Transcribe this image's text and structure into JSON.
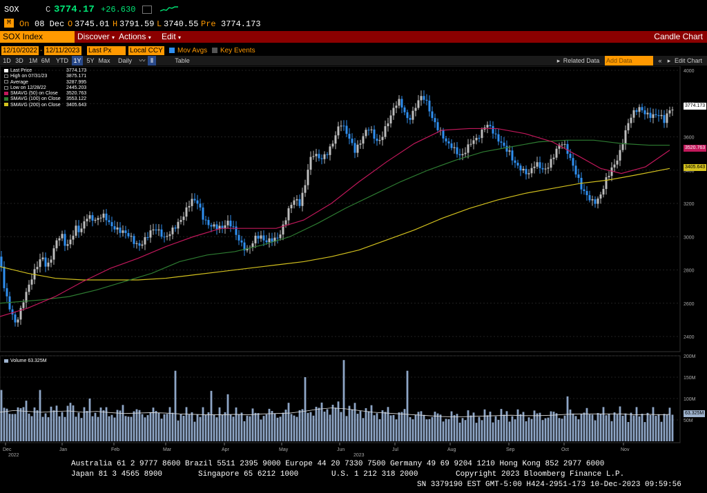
{
  "quote": {
    "ticker": "SOX",
    "c_prefix": "C",
    "last": "3774.17",
    "change": "+26.630",
    "icon_m": "M",
    "on_label": "On",
    "date": "08 Dec",
    "o_prefix": "O",
    "open": "3745.01",
    "h_prefix": "H",
    "high": "3791.59",
    "l_prefix": "L",
    "low": "3740.55",
    "pre_label": "Pre",
    "pre": "3774.173"
  },
  "menu": {
    "security": "SOX Index",
    "discover": "Discover",
    "actions": "Actions",
    "edit": "Edit",
    "view": "Candle Chart"
  },
  "toolbar": {
    "start_date": "12/10/2022",
    "end_date": "12/11/2023",
    "field": "Last Px",
    "currency": "Local CCY",
    "mov_avgs": "Mov Avgs",
    "key_events": "Key Events",
    "periods": [
      "1D",
      "3D",
      "1M",
      "6M",
      "YTD",
      "1Y",
      "5Y",
      "Max"
    ],
    "selected_period": "1Y",
    "frequency": "Daily",
    "table": "Table",
    "related_data": "Related Data",
    "add_data_placeholder": "Add Data",
    "edit_chart": "Edit Chart"
  },
  "legend": [
    {
      "label": "Last Price",
      "value": "3774.173",
      "color": "#ffffff"
    },
    {
      "label": "High on 07/31/23",
      "value": "3875.171",
      "color": "#ffffff"
    },
    {
      "label": "Average",
      "value": "3287.995",
      "color": "#ffffff"
    },
    {
      "label": "Low on 12/28/22",
      "value": "2445.203",
      "color": "#ffffff"
    },
    {
      "label": "SMAVG (50)  on Close",
      "value": "3520.763",
      "color": "#c2185b"
    },
    {
      "label": "SMAVG (100)  on Close",
      "value": "3553.122",
      "color": "#2e7d32"
    },
    {
      "label": "SMAVG (200)  on Close",
      "value": "3405.643",
      "color": "#d4c21e"
    }
  ],
  "volume_legend": {
    "label": "Volume",
    "value": "63.325M"
  },
  "price_labels": {
    "last": "3774.173",
    "sma50": "3520.763",
    "sma200": "3405.643",
    "volume": "63.325M"
  },
  "colors": {
    "up": "#bdbdbd",
    "down": "#2f8ff0",
    "sma50": "#c2185b",
    "sma100": "#2e7d32",
    "sma200": "#d4c21e",
    "menu": "#8b0000",
    "accent": "#ff9900"
  },
  "chart_data": {
    "type": "candlestick",
    "price_ylim": [
      2300,
      4000
    ],
    "price_ticks": [
      "2400",
      "2600",
      "2800",
      "3000",
      "3200",
      "3400",
      "3600",
      "3800",
      "4000"
    ],
    "volume_ylim": [
      0,
      200
    ],
    "volume_ticks": [
      "50M",
      "100M",
      "150M",
      "200M"
    ],
    "x_ticks": [
      "Dec",
      "Jan",
      "Feb",
      "Mar",
      "Apr",
      "May",
      "Jun",
      "Jul",
      "Aug",
      "Sep",
      "Oct",
      "Nov"
    ],
    "x_subticks": [
      "2022",
      "2023"
    ],
    "close_path": [
      [
        0,
        2880
      ],
      [
        5,
        2730
      ],
      [
        12,
        2610
      ],
      [
        17,
        2560
      ],
      [
        21,
        2480
      ],
      [
        28,
        2520
      ],
      [
        34,
        2600
      ],
      [
        40,
        2670
      ],
      [
        47,
        2760
      ],
      [
        54,
        2840
      ],
      [
        61,
        2900
      ],
      [
        68,
        2820
      ],
      [
        75,
        2880
      ],
      [
        82,
        2960
      ],
      [
        89,
        3000
      ],
      [
        96,
        2930
      ],
      [
        103,
        3000
      ],
      [
        110,
        3070
      ],
      [
        117,
        3040
      ],
      [
        124,
        3110
      ],
      [
        131,
        3100
      ],
      [
        138,
        3080
      ],
      [
        145,
        3120
      ],
      [
        152,
        3140
      ],
      [
        159,
        3090
      ],
      [
        166,
        3060
      ],
      [
        173,
        3030
      ],
      [
        180,
        3010
      ],
      [
        188,
        2990
      ],
      [
        196,
        2960
      ],
      [
        203,
        2960
      ],
      [
        210,
        3000
      ],
      [
        217,
        3030
      ],
      [
        224,
        3040
      ],
      [
        231,
        3010
      ],
      [
        238,
        2980
      ],
      [
        245,
        3020
      ],
      [
        252,
        3070
      ],
      [
        259,
        3100
      ],
      [
        266,
        3130
      ],
      [
        273,
        3180
      ],
      [
        280,
        3210
      ],
      [
        287,
        3190
      ],
      [
        294,
        3120
      ],
      [
        301,
        3090
      ],
      [
        308,
        3080
      ],
      [
        315,
        3060
      ],
      [
        322,
        3040
      ],
      [
        329,
        3070
      ],
      [
        336,
        3060
      ],
      [
        343,
        3010
      ],
      [
        350,
        2970
      ],
      [
        357,
        2930
      ],
      [
        364,
        2950
      ],
      [
        371,
        2990
      ],
      [
        378,
        2980
      ],
      [
        385,
        2960
      ],
      [
        392,
        2990
      ],
      [
        399,
        3000
      ],
      [
        406,
        3030
      ],
      [
        413,
        3100
      ],
      [
        420,
        3170
      ],
      [
        427,
        3210
      ],
      [
        434,
        3190
      ],
      [
        441,
        3300
      ],
      [
        446,
        3420
      ],
      [
        452,
        3520
      ],
      [
        459,
        3490
      ],
      [
        466,
        3460
      ],
      [
        473,
        3480
      ],
      [
        480,
        3530
      ],
      [
        486,
        3610
      ],
      [
        493,
        3700
      ],
      [
        500,
        3660
      ],
      [
        507,
        3590
      ],
      [
        514,
        3510
      ],
      [
        521,
        3540
      ],
      [
        528,
        3610
      ],
      [
        535,
        3660
      ],
      [
        542,
        3610
      ],
      [
        549,
        3580
      ],
      [
        556,
        3640
      ],
      [
        563,
        3690
      ],
      [
        570,
        3750
      ],
      [
        577,
        3810
      ],
      [
        584,
        3770
      ],
      [
        591,
        3710
      ],
      [
        598,
        3760
      ],
      [
        605,
        3820
      ],
      [
        612,
        3840
      ],
      [
        619,
        3780
      ],
      [
        626,
        3700
      ],
      [
        633,
        3660
      ],
      [
        640,
        3630
      ],
      [
        647,
        3580
      ],
      [
        654,
        3550
      ],
      [
        661,
        3500
      ],
      [
        668,
        3460
      ],
      [
        675,
        3510
      ],
      [
        682,
        3570
      ],
      [
        689,
        3600
      ],
      [
        696,
        3630
      ],
      [
        703,
        3680
      ],
      [
        710,
        3650
      ],
      [
        717,
        3590
      ],
      [
        724,
        3560
      ],
      [
        731,
        3540
      ],
      [
        738,
        3520
      ],
      [
        745,
        3460
      ],
      [
        752,
        3420
      ],
      [
        759,
        3380
      ],
      [
        766,
        3360
      ],
      [
        773,
        3420
      ],
      [
        780,
        3440
      ],
      [
        787,
        3410
      ],
      [
        794,
        3440
      ],
      [
        801,
        3480
      ],
      [
        808,
        3530
      ],
      [
        815,
        3550
      ],
      [
        822,
        3500
      ],
      [
        829,
        3440
      ],
      [
        836,
        3380
      ],
      [
        843,
        3300
      ],
      [
        850,
        3250
      ],
      [
        857,
        3200
      ],
      [
        864,
        3190
      ],
      [
        871,
        3250
      ],
      [
        878,
        3350
      ],
      [
        885,
        3420
      ],
      [
        892,
        3460
      ],
      [
        899,
        3520
      ],
      [
        906,
        3620
      ],
      [
        913,
        3700
      ],
      [
        920,
        3750
      ],
      [
        927,
        3780
      ],
      [
        934,
        3760
      ],
      [
        941,
        3740
      ],
      [
        948,
        3730
      ],
      [
        955,
        3720
      ],
      [
        962,
        3680
      ],
      [
        969,
        3750
      ],
      [
        974,
        3774
      ]
    ],
    "sma50_path": [
      [
        0,
        2520
      ],
      [
        40,
        2570
      ],
      [
        80,
        2640
      ],
      [
        120,
        2730
      ],
      [
        160,
        2810
      ],
      [
        200,
        2870
      ],
      [
        240,
        2940
      ],
      [
        280,
        3000
      ],
      [
        320,
        3050
      ],
      [
        360,
        3050
      ],
      [
        400,
        3050
      ],
      [
        440,
        3100
      ],
      [
        480,
        3200
      ],
      [
        520,
        3330
      ],
      [
        560,
        3450
      ],
      [
        600,
        3560
      ],
      [
        640,
        3640
      ],
      [
        680,
        3650
      ],
      [
        720,
        3650
      ],
      [
        760,
        3620
      ],
      [
        800,
        3570
      ],
      [
        840,
        3480
      ],
      [
        870,
        3410
      ],
      [
        900,
        3380
      ],
      [
        935,
        3420
      ],
      [
        970,
        3520
      ]
    ],
    "sma100_path": [
      [
        0,
        2600
      ],
      [
        60,
        2620
      ],
      [
        100,
        2640
      ],
      [
        140,
        2680
      ],
      [
        180,
        2730
      ],
      [
        220,
        2780
      ],
      [
        260,
        2850
      ],
      [
        300,
        2890
      ],
      [
        340,
        2910
      ],
      [
        380,
        2950
      ],
      [
        420,
        3000
      ],
      [
        460,
        3080
      ],
      [
        500,
        3170
      ],
      [
        540,
        3250
      ],
      [
        580,
        3330
      ],
      [
        620,
        3400
      ],
      [
        660,
        3460
      ],
      [
        700,
        3510
      ],
      [
        740,
        3540
      ],
      [
        780,
        3570
      ],
      [
        820,
        3580
      ],
      [
        860,
        3580
      ],
      [
        900,
        3560
      ],
      [
        940,
        3550
      ],
      [
        970,
        3550
      ]
    ],
    "sma200_path": [
      [
        0,
        2820
      ],
      [
        40,
        2780
      ],
      [
        80,
        2750
      ],
      [
        120,
        2740
      ],
      [
        160,
        2740
      ],
      [
        200,
        2740
      ],
      [
        240,
        2750
      ],
      [
        280,
        2770
      ],
      [
        320,
        2790
      ],
      [
        360,
        2810
      ],
      [
        400,
        2830
      ],
      [
        440,
        2850
      ],
      [
        480,
        2880
      ],
      [
        520,
        2920
      ],
      [
        560,
        2980
      ],
      [
        600,
        3040
      ],
      [
        640,
        3110
      ],
      [
        680,
        3170
      ],
      [
        720,
        3220
      ],
      [
        760,
        3260
      ],
      [
        800,
        3290
      ],
      [
        840,
        3320
      ],
      [
        880,
        3340
      ],
      [
        920,
        3370
      ],
      [
        970,
        3410
      ]
    ],
    "volume_path": [
      [
        0,
        68
      ],
      [
        20,
        72
      ],
      [
        40,
        70
      ],
      [
        60,
        68
      ],
      [
        80,
        70
      ],
      [
        100,
        71
      ],
      [
        120,
        68
      ],
      [
        140,
        70
      ],
      [
        160,
        67
      ],
      [
        180,
        65
      ],
      [
        200,
        66
      ],
      [
        220,
        67
      ],
      [
        240,
        66
      ],
      [
        260,
        64
      ],
      [
        280,
        63
      ],
      [
        300,
        62
      ],
      [
        320,
        62
      ],
      [
        340,
        63
      ],
      [
        360,
        62
      ],
      [
        380,
        64
      ],
      [
        400,
        65
      ],
      [
        420,
        66
      ],
      [
        440,
        70
      ],
      [
        460,
        75
      ],
      [
        480,
        78
      ],
      [
        500,
        76
      ],
      [
        520,
        72
      ],
      [
        540,
        68
      ],
      [
        560,
        66
      ],
      [
        580,
        64
      ],
      [
        600,
        62
      ],
      [
        620,
        60
      ],
      [
        640,
        58
      ],
      [
        660,
        57
      ],
      [
        680,
        58
      ],
      [
        700,
        59
      ],
      [
        720,
        60
      ],
      [
        740,
        61
      ],
      [
        760,
        60
      ],
      [
        780,
        60
      ],
      [
        800,
        61
      ],
      [
        820,
        63
      ],
      [
        840,
        64
      ],
      [
        860,
        64
      ],
      [
        880,
        64
      ],
      [
        900,
        64
      ],
      [
        920,
        62
      ],
      [
        940,
        63
      ],
      [
        960,
        62
      ],
      [
        970,
        63
      ]
    ],
    "volume_spikes": [
      [
        3,
        120
      ],
      [
        38,
        95
      ],
      [
        58,
        120
      ],
      [
        103,
        90
      ],
      [
        130,
        100
      ],
      [
        177,
        85
      ],
      [
        253,
        165
      ],
      [
        307,
        118
      ],
      [
        330,
        110
      ],
      [
        418,
        90
      ],
      [
        441,
        150
      ],
      [
        498,
        190
      ],
      [
        520,
        105
      ],
      [
        591,
        165
      ],
      [
        624,
        125
      ],
      [
        680,
        110
      ],
      [
        740,
        140
      ],
      [
        792,
        110
      ],
      [
        822,
        105
      ],
      [
        948,
        110
      ]
    ]
  },
  "footer": {
    "line1": "Australia 61 2 9777 8600 Brazil 5511 2395 9000 Europe 44 20 7330 7500 Germany 49 69 9204 1210 Hong Kong 852 2977 6000",
    "line2_left": "Japan 81 3 4565 8900",
    "line2_mid1": "Singapore 65 6212 1000",
    "line2_mid2": "U.S. 1 212 318 2000",
    "line2_right": "Copyright 2023 Bloomberg Finance L.P.",
    "line3": "SN 3379190 EST  GMT-5:00 H424-2951-173 10-Dec-2023 09:59:56"
  }
}
